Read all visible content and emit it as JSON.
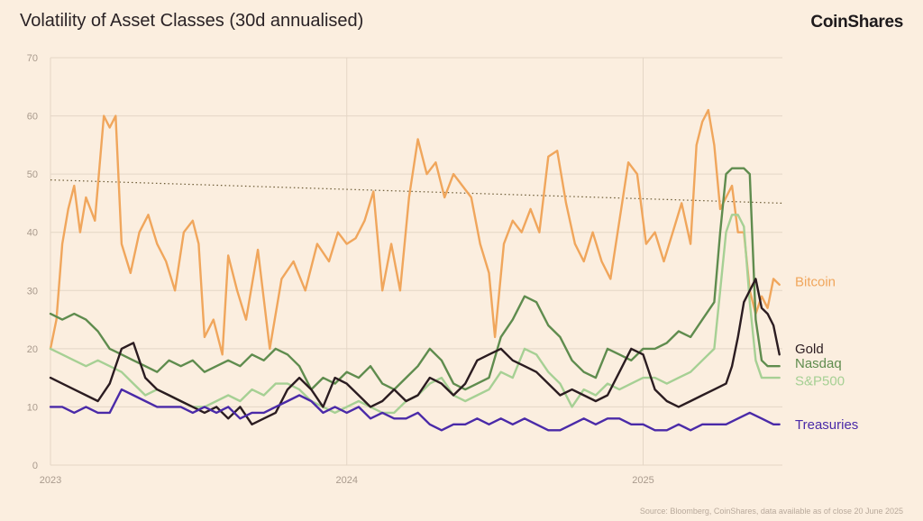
{
  "header": {
    "title": "Volatility of Asset Classes (30d annualised)",
    "brand": "CoinShares"
  },
  "footer": {
    "source": "Source: Bloomberg, CoinShares, data available as of close 20 June 2025"
  },
  "chart_data": {
    "type": "line",
    "title": "Volatility of Asset Classes (30d annualised)",
    "xlabel": "",
    "ylabel": "",
    "x_range": [
      2023.0,
      2025.47
    ],
    "ylim": [
      0,
      70
    ],
    "yticks": [
      "0",
      "10",
      "20",
      "30",
      "40",
      "50",
      "60",
      "70"
    ],
    "xticks": [
      {
        "label": "2023",
        "x": 2023.0
      },
      {
        "label": "2024",
        "x": 2024.0
      },
      {
        "label": "2025",
        "x": 2025.0
      }
    ],
    "grid": true,
    "legend": "inline-right",
    "series": [
      {
        "name": "Bitcoin",
        "color": "#f0a65c",
        "x": [
          2023.0,
          2023.02,
          2023.04,
          2023.06,
          2023.08,
          2023.1,
          2023.12,
          2023.15,
          2023.18,
          2023.2,
          2023.22,
          2023.24,
          2023.27,
          2023.3,
          2023.33,
          2023.36,
          2023.39,
          2023.42,
          2023.45,
          2023.48,
          2023.5,
          2023.52,
          2023.55,
          2023.58,
          2023.6,
          2023.63,
          2023.66,
          2023.7,
          2023.74,
          2023.78,
          2023.82,
          2023.86,
          2023.9,
          2023.94,
          2023.97,
          2024.0,
          2024.03,
          2024.06,
          2024.09,
          2024.12,
          2024.15,
          2024.18,
          2024.21,
          2024.24,
          2024.27,
          2024.3,
          2024.33,
          2024.36,
          2024.39,
          2024.42,
          2024.45,
          2024.48,
          2024.5,
          2024.53,
          2024.56,
          2024.59,
          2024.62,
          2024.65,
          2024.68,
          2024.71,
          2024.74,
          2024.77,
          2024.8,
          2024.83,
          2024.86,
          2024.89,
          2024.92,
          2024.95,
          2024.98,
          2025.01,
          2025.04,
          2025.07,
          2025.1,
          2025.13,
          2025.16,
          2025.18,
          2025.2,
          2025.22,
          2025.24,
          2025.26,
          2025.28,
          2025.3,
          2025.32,
          2025.34,
          2025.36,
          2025.38,
          2025.4,
          2025.42,
          2025.44,
          2025.46
        ],
        "values": [
          20,
          25,
          38,
          44,
          48,
          40,
          46,
          42,
          60,
          58,
          60,
          38,
          33,
          40,
          43,
          38,
          35,
          30,
          40,
          42,
          38,
          22,
          25,
          19,
          36,
          30,
          25,
          37,
          20,
          32,
          35,
          30,
          38,
          35,
          40,
          38,
          39,
          42,
          47,
          30,
          38,
          30,
          46,
          56,
          50,
          52,
          46,
          50,
          48,
          46,
          38,
          33,
          22,
          38,
          42,
          40,
          44,
          40,
          53,
          54,
          45,
          38,
          35,
          40,
          35,
          32,
          42,
          52,
          50,
          38,
          40,
          35,
          40,
          45,
          38,
          55,
          59,
          61,
          55,
          44,
          46,
          48,
          40,
          40,
          30,
          26,
          29,
          27,
          32,
          31
        ]
      },
      {
        "name": "Gold",
        "color": "#2b1c21",
        "x": [
          2023.0,
          2023.04,
          2023.08,
          2023.12,
          2023.16,
          2023.2,
          2023.24,
          2023.28,
          2023.32,
          2023.36,
          2023.4,
          2023.44,
          2023.48,
          2023.52,
          2023.56,
          2023.6,
          2023.64,
          2023.68,
          2023.72,
          2023.76,
          2023.8,
          2023.84,
          2023.88,
          2023.92,
          2023.96,
          2024.0,
          2024.04,
          2024.08,
          2024.12,
          2024.16,
          2024.2,
          2024.24,
          2024.28,
          2024.32,
          2024.36,
          2024.4,
          2024.44,
          2024.48,
          2024.52,
          2024.56,
          2024.6,
          2024.64,
          2024.68,
          2024.72,
          2024.76,
          2024.8,
          2024.84,
          2024.88,
          2024.92,
          2024.96,
          2025.0,
          2025.04,
          2025.08,
          2025.12,
          2025.16,
          2025.2,
          2025.24,
          2025.28,
          2025.3,
          2025.32,
          2025.34,
          2025.36,
          2025.38,
          2025.4,
          2025.42,
          2025.44,
          2025.46
        ],
        "values": [
          15,
          14,
          13,
          12,
          11,
          14,
          20,
          21,
          15,
          13,
          12,
          11,
          10,
          9,
          10,
          8,
          10,
          7,
          8,
          9,
          13,
          15,
          13,
          10,
          15,
          14,
          12,
          10,
          11,
          13,
          11,
          12,
          15,
          14,
          12,
          14,
          18,
          19,
          20,
          18,
          17,
          16,
          14,
          12,
          13,
          12,
          11,
          12,
          16,
          20,
          19,
          13,
          11,
          10,
          11,
          12,
          13,
          14,
          17,
          22,
          28,
          30,
          32,
          27,
          26,
          24,
          19
        ]
      },
      {
        "name": "Nasdaq",
        "color": "#5f8c4e",
        "x": [
          2023.0,
          2023.04,
          2023.08,
          2023.12,
          2023.16,
          2023.2,
          2023.24,
          2023.28,
          2023.32,
          2023.36,
          2023.4,
          2023.44,
          2023.48,
          2023.52,
          2023.56,
          2023.6,
          2023.64,
          2023.68,
          2023.72,
          2023.76,
          2023.8,
          2023.84,
          2023.88,
          2023.92,
          2023.96,
          2024.0,
          2024.04,
          2024.08,
          2024.12,
          2024.16,
          2024.2,
          2024.24,
          2024.28,
          2024.32,
          2024.36,
          2024.4,
          2024.44,
          2024.48,
          2024.52,
          2024.56,
          2024.6,
          2024.64,
          2024.68,
          2024.72,
          2024.76,
          2024.8,
          2024.84,
          2024.88,
          2024.92,
          2024.96,
          2025.0,
          2025.04,
          2025.08,
          2025.12,
          2025.16,
          2025.2,
          2025.24,
          2025.26,
          2025.28,
          2025.3,
          2025.34,
          2025.36,
          2025.38,
          2025.4,
          2025.42,
          2025.44,
          2025.46
        ],
        "values": [
          26,
          25,
          26,
          25,
          23,
          20,
          19,
          18,
          17,
          16,
          18,
          17,
          18,
          16,
          17,
          18,
          17,
          19,
          18,
          20,
          19,
          17,
          13,
          15,
          14,
          16,
          15,
          17,
          14,
          13,
          15,
          17,
          20,
          18,
          14,
          13,
          14,
          15,
          22,
          25,
          29,
          28,
          24,
          22,
          18,
          16,
          15,
          20,
          19,
          18,
          20,
          20,
          21,
          23,
          22,
          25,
          28,
          40,
          50,
          51,
          51,
          50,
          25,
          18,
          17,
          17,
          17
        ]
      },
      {
        "name": "S&P500",
        "color": "#a6d094",
        "x": [
          2023.0,
          2023.04,
          2023.08,
          2023.12,
          2023.16,
          2023.2,
          2023.24,
          2023.28,
          2023.32,
          2023.36,
          2023.4,
          2023.44,
          2023.48,
          2023.52,
          2023.56,
          2023.6,
          2023.64,
          2023.68,
          2023.72,
          2023.76,
          2023.8,
          2023.84,
          2023.88,
          2023.92,
          2023.96,
          2024.0,
          2024.04,
          2024.08,
          2024.12,
          2024.16,
          2024.2,
          2024.24,
          2024.28,
          2024.32,
          2024.36,
          2024.4,
          2024.44,
          2024.48,
          2024.52,
          2024.56,
          2024.6,
          2024.64,
          2024.68,
          2024.72,
          2024.76,
          2024.8,
          2024.84,
          2024.88,
          2024.92,
          2024.96,
          2025.0,
          2025.04,
          2025.08,
          2025.12,
          2025.16,
          2025.2,
          2025.24,
          2025.26,
          2025.28,
          2025.3,
          2025.32,
          2025.34,
          2025.36,
          2025.38,
          2025.4,
          2025.42,
          2025.44,
          2025.46
        ],
        "values": [
          20,
          19,
          18,
          17,
          18,
          17,
          16,
          14,
          12,
          13,
          12,
          11,
          10,
          10,
          11,
          12,
          11,
          13,
          12,
          14,
          14,
          13,
          11,
          10,
          9,
          10,
          11,
          10,
          9,
          9,
          11,
          12,
          14,
          15,
          12,
          11,
          12,
          13,
          16,
          15,
          20,
          19,
          16,
          14,
          10,
          13,
          12,
          14,
          13,
          14,
          15,
          15,
          14,
          15,
          16,
          18,
          20,
          30,
          40,
          43,
          43,
          41,
          28,
          18,
          15,
          15,
          15,
          15
        ]
      },
      {
        "name": "Treasuries",
        "color": "#4a2aa8",
        "x": [
          2023.0,
          2023.04,
          2023.08,
          2023.12,
          2023.16,
          2023.2,
          2023.24,
          2023.28,
          2023.32,
          2023.36,
          2023.4,
          2023.44,
          2023.48,
          2023.52,
          2023.56,
          2023.6,
          2023.64,
          2023.68,
          2023.72,
          2023.76,
          2023.8,
          2023.84,
          2023.88,
          2023.92,
          2023.96,
          2024.0,
          2024.04,
          2024.08,
          2024.12,
          2024.16,
          2024.2,
          2024.24,
          2024.28,
          2024.32,
          2024.36,
          2024.4,
          2024.44,
          2024.48,
          2024.52,
          2024.56,
          2024.6,
          2024.64,
          2024.68,
          2024.72,
          2024.76,
          2024.8,
          2024.84,
          2024.88,
          2024.92,
          2024.96,
          2025.0,
          2025.04,
          2025.08,
          2025.12,
          2025.16,
          2025.2,
          2025.24,
          2025.28,
          2025.32,
          2025.36,
          2025.4,
          2025.44,
          2025.46
        ],
        "values": [
          10,
          10,
          9,
          10,
          9,
          9,
          13,
          12,
          11,
          10,
          10,
          10,
          9,
          10,
          9,
          10,
          8,
          9,
          9,
          10,
          11,
          12,
          11,
          9,
          10,
          9,
          10,
          8,
          9,
          8,
          8,
          9,
          7,
          6,
          7,
          7,
          8,
          7,
          8,
          7,
          8,
          7,
          6,
          6,
          7,
          8,
          7,
          8,
          8,
          7,
          7,
          6,
          6,
          7,
          6,
          7,
          7,
          7,
          8,
          9,
          8,
          7,
          7
        ]
      }
    ],
    "trendline": {
      "name": "Bitcoin trend",
      "x": [
        2023.0,
        2025.47
      ],
      "values": [
        49,
        45
      ],
      "color": "#6b5a34",
      "style": "dotted"
    }
  }
}
